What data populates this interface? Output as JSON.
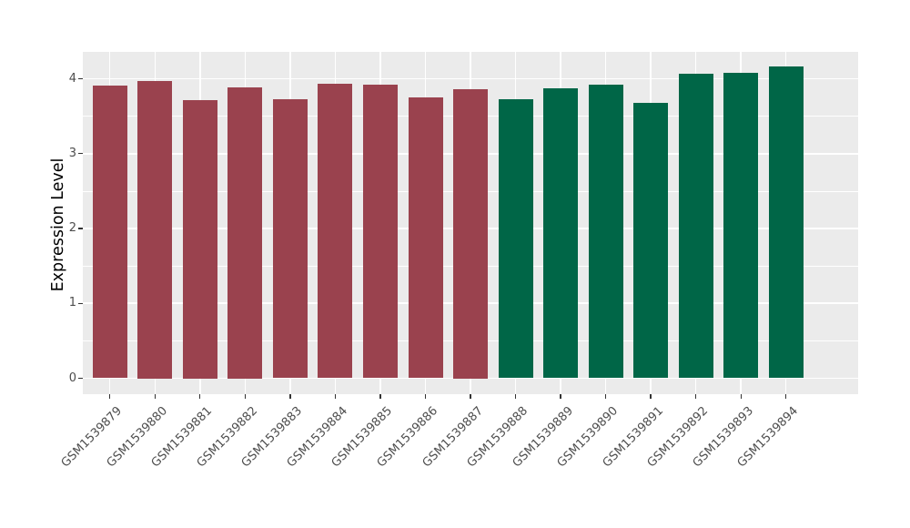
{
  "chart_data": {
    "type": "bar",
    "title": "",
    "xlabel": "",
    "ylabel": "Expression Level",
    "categories": [
      "GSM1539879",
      "GSM1539880",
      "GSM1539881",
      "GSM1539882",
      "GSM1539883",
      "GSM1539884",
      "GSM1539885",
      "GSM1539886",
      "GSM1539887",
      "GSM1539888",
      "GSM1539889",
      "GSM1539890",
      "GSM1539891",
      "GSM1539892",
      "GSM1539893",
      "GSM1539894"
    ],
    "values": [
      3.91,
      3.97,
      3.72,
      3.89,
      3.73,
      3.93,
      3.92,
      3.75,
      3.86,
      3.73,
      3.87,
      3.92,
      3.68,
      4.07,
      4.08,
      4.16
    ],
    "bar_color_keys": [
      "maroon",
      "maroon",
      "maroon",
      "maroon",
      "maroon",
      "maroon",
      "maroon",
      "maroon",
      "maroon",
      "green",
      "green",
      "green",
      "green",
      "green",
      "green",
      "green"
    ],
    "colors": {
      "maroon": "#9A424E",
      "green": "#006647",
      "panel_bg": "#EBEBEB",
      "grid": "#FFFFFF",
      "tick": "#333333",
      "tick_label": "#4D4D4D",
      "axis_title": "#000000"
    },
    "yticks": [
      0,
      1,
      2,
      3,
      4
    ],
    "ytick_labels": [
      "0",
      "1",
      "2",
      "3",
      "4"
    ],
    "minor_yticks": [
      0.5,
      1.5,
      2.5,
      3.5
    ],
    "ylim": [
      0,
      4.37
    ],
    "x_label_angle": -45,
    "grid": "horizontal major+minor, vertical major at bar centers",
    "legend": "none"
  }
}
